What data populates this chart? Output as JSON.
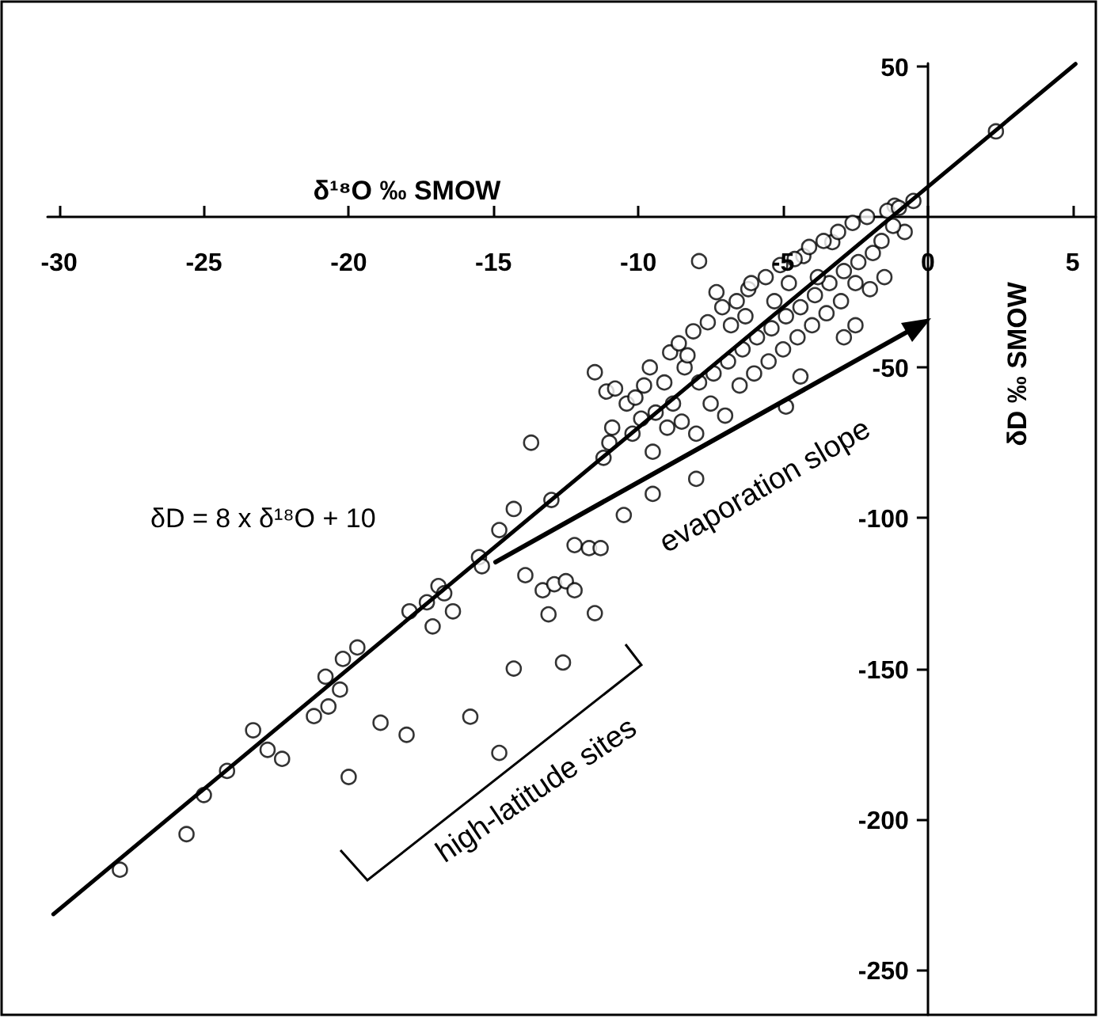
{
  "chart_data": {
    "type": "scatter",
    "xlabel": "δ¹⁸O ‰ SMOW",
    "ylabel": "δD ‰ SMOW",
    "annotations": [
      "δD = 8 x δ¹⁸O + 10",
      "evaporation slope",
      "high-latitude sites"
    ],
    "xlim": [
      -30.4,
      5.8
    ],
    "ylim": [
      -265,
      51
    ],
    "xticks": [
      -30,
      -25,
      -20,
      -15,
      -10,
      -5,
      0,
      5
    ],
    "yticks": [
      -250,
      -200,
      -150,
      -100,
      -50,
      50
    ],
    "grid": false,
    "marker": "circle",
    "series": [
      {
        "color": "#000000",
        "x": [
          2.35,
          -0.5,
          -1.15,
          -0.8,
          -7.9,
          -1.5,
          -2.9,
          -2.5,
          -4.9,
          -4.4,
          -8,
          -7.3,
          -6.2,
          -3.3,
          -4.3,
          -27.9,
          -25.6,
          -25.0,
          -24.2,
          -23.3,
          -22.8,
          -22.3,
          -21.2,
          -20.7,
          -20.3,
          -20.8,
          -20.2,
          -19.7,
          -20.0,
          -18.9,
          -18.0,
          -15.8,
          -14.8,
          -14.3,
          -12.6,
          -17.9,
          -17.1,
          -16.4,
          -17.3,
          -16.9,
          -16.7,
          -15.5,
          -15.4,
          -14.8,
          -14.3,
          -13.9,
          -13.3,
          -12.9,
          -12.5,
          -12.2,
          -13.1,
          -11.5,
          -12.2,
          -11.7,
          -11.3,
          -13.0,
          -10.5,
          -9.5,
          -13.7,
          -11.5,
          -11.1,
          -10.8,
          -10.4,
          -11.0,
          -10.9,
          -11.2,
          -10.1,
          -9.9,
          -10.2,
          -9.6,
          -9.4,
          -9.5,
          -8.9,
          -9.1,
          -9.0,
          -8.8,
          -8.6,
          -8.4,
          -8.5,
          -8.1,
          -7.9,
          -8.0,
          -7.6,
          -7.4,
          -7.5,
          -7.1,
          -6.9,
          -7.0,
          -6.6,
          -6.4,
          -6.5,
          -6.1,
          -5.9,
          -6.0,
          -5.6,
          -5.4,
          -5.5,
          -5.1,
          -4.9,
          -5.0,
          -4.6,
          -4.4,
          -4.5,
          -4.1,
          -3.9,
          -4.0,
          -3.6,
          -3.4,
          -3.5,
          -3.1,
          -2.9,
          -3.0,
          -2.6,
          -2.4,
          -2.5,
          -2.1,
          -1.9,
          -2.0,
          -1.4,
          -1.6,
          -1.0,
          -1.2,
          -3.8,
          -5.3,
          -6.8,
          -8.3,
          -9.8,
          -4.8,
          -6.3
        ],
        "values": [
          28.4,
          5.3,
          3.7,
          -5,
          -14.7,
          -20,
          -40,
          -36,
          -63,
          -53,
          -87,
          -25,
          -24,
          -8.4,
          -13,
          -216.8,
          -205,
          -192,
          -184,
          -170.5,
          -177,
          -180,
          -165.8,
          -162.6,
          -157,
          -152.7,
          -146.8,
          -143,
          -186,
          -168,
          -172,
          -166,
          -178,
          -150,
          -148,
          -131,
          -136,
          -131,
          -128,
          -122.6,
          -125,
          -113,
          -116,
          -104,
          -97,
          -119,
          -124,
          -122,
          -121,
          -124,
          -132,
          -131.6,
          -109,
          -110,
          -110,
          -94,
          -99,
          -92,
          -75,
          -51.6,
          -58,
          -57,
          -62,
          -75,
          -70,
          -80,
          -60,
          -67,
          -72,
          -50,
          -65,
          -78,
          -45,
          -55,
          -70,
          -62,
          -42,
          -50,
          -68,
          -38,
          -55,
          -72,
          -35,
          -52,
          -62,
          -30,
          -48,
          -66,
          -28,
          -44,
          -56,
          -22,
          -40,
          -52,
          -20,
          -37,
          -48,
          -16,
          -33,
          -44,
          -14,
          -30,
          -40,
          -10,
          -26,
          -36,
          -8,
          -22,
          -32,
          -5,
          -18,
          -28,
          -2,
          -15,
          -22,
          0,
          -12,
          -24,
          2,
          -8,
          3,
          -3,
          -20,
          -28,
          -36,
          -46,
          -56,
          -22,
          -33
        ]
      },
      {
        "type": "line",
        "color": "#000000",
        "marker": "none",
        "x": [
          -30.2,
          5.1
        ],
        "values": [
          -231.6,
          50.8
        ]
      }
    ]
  }
}
